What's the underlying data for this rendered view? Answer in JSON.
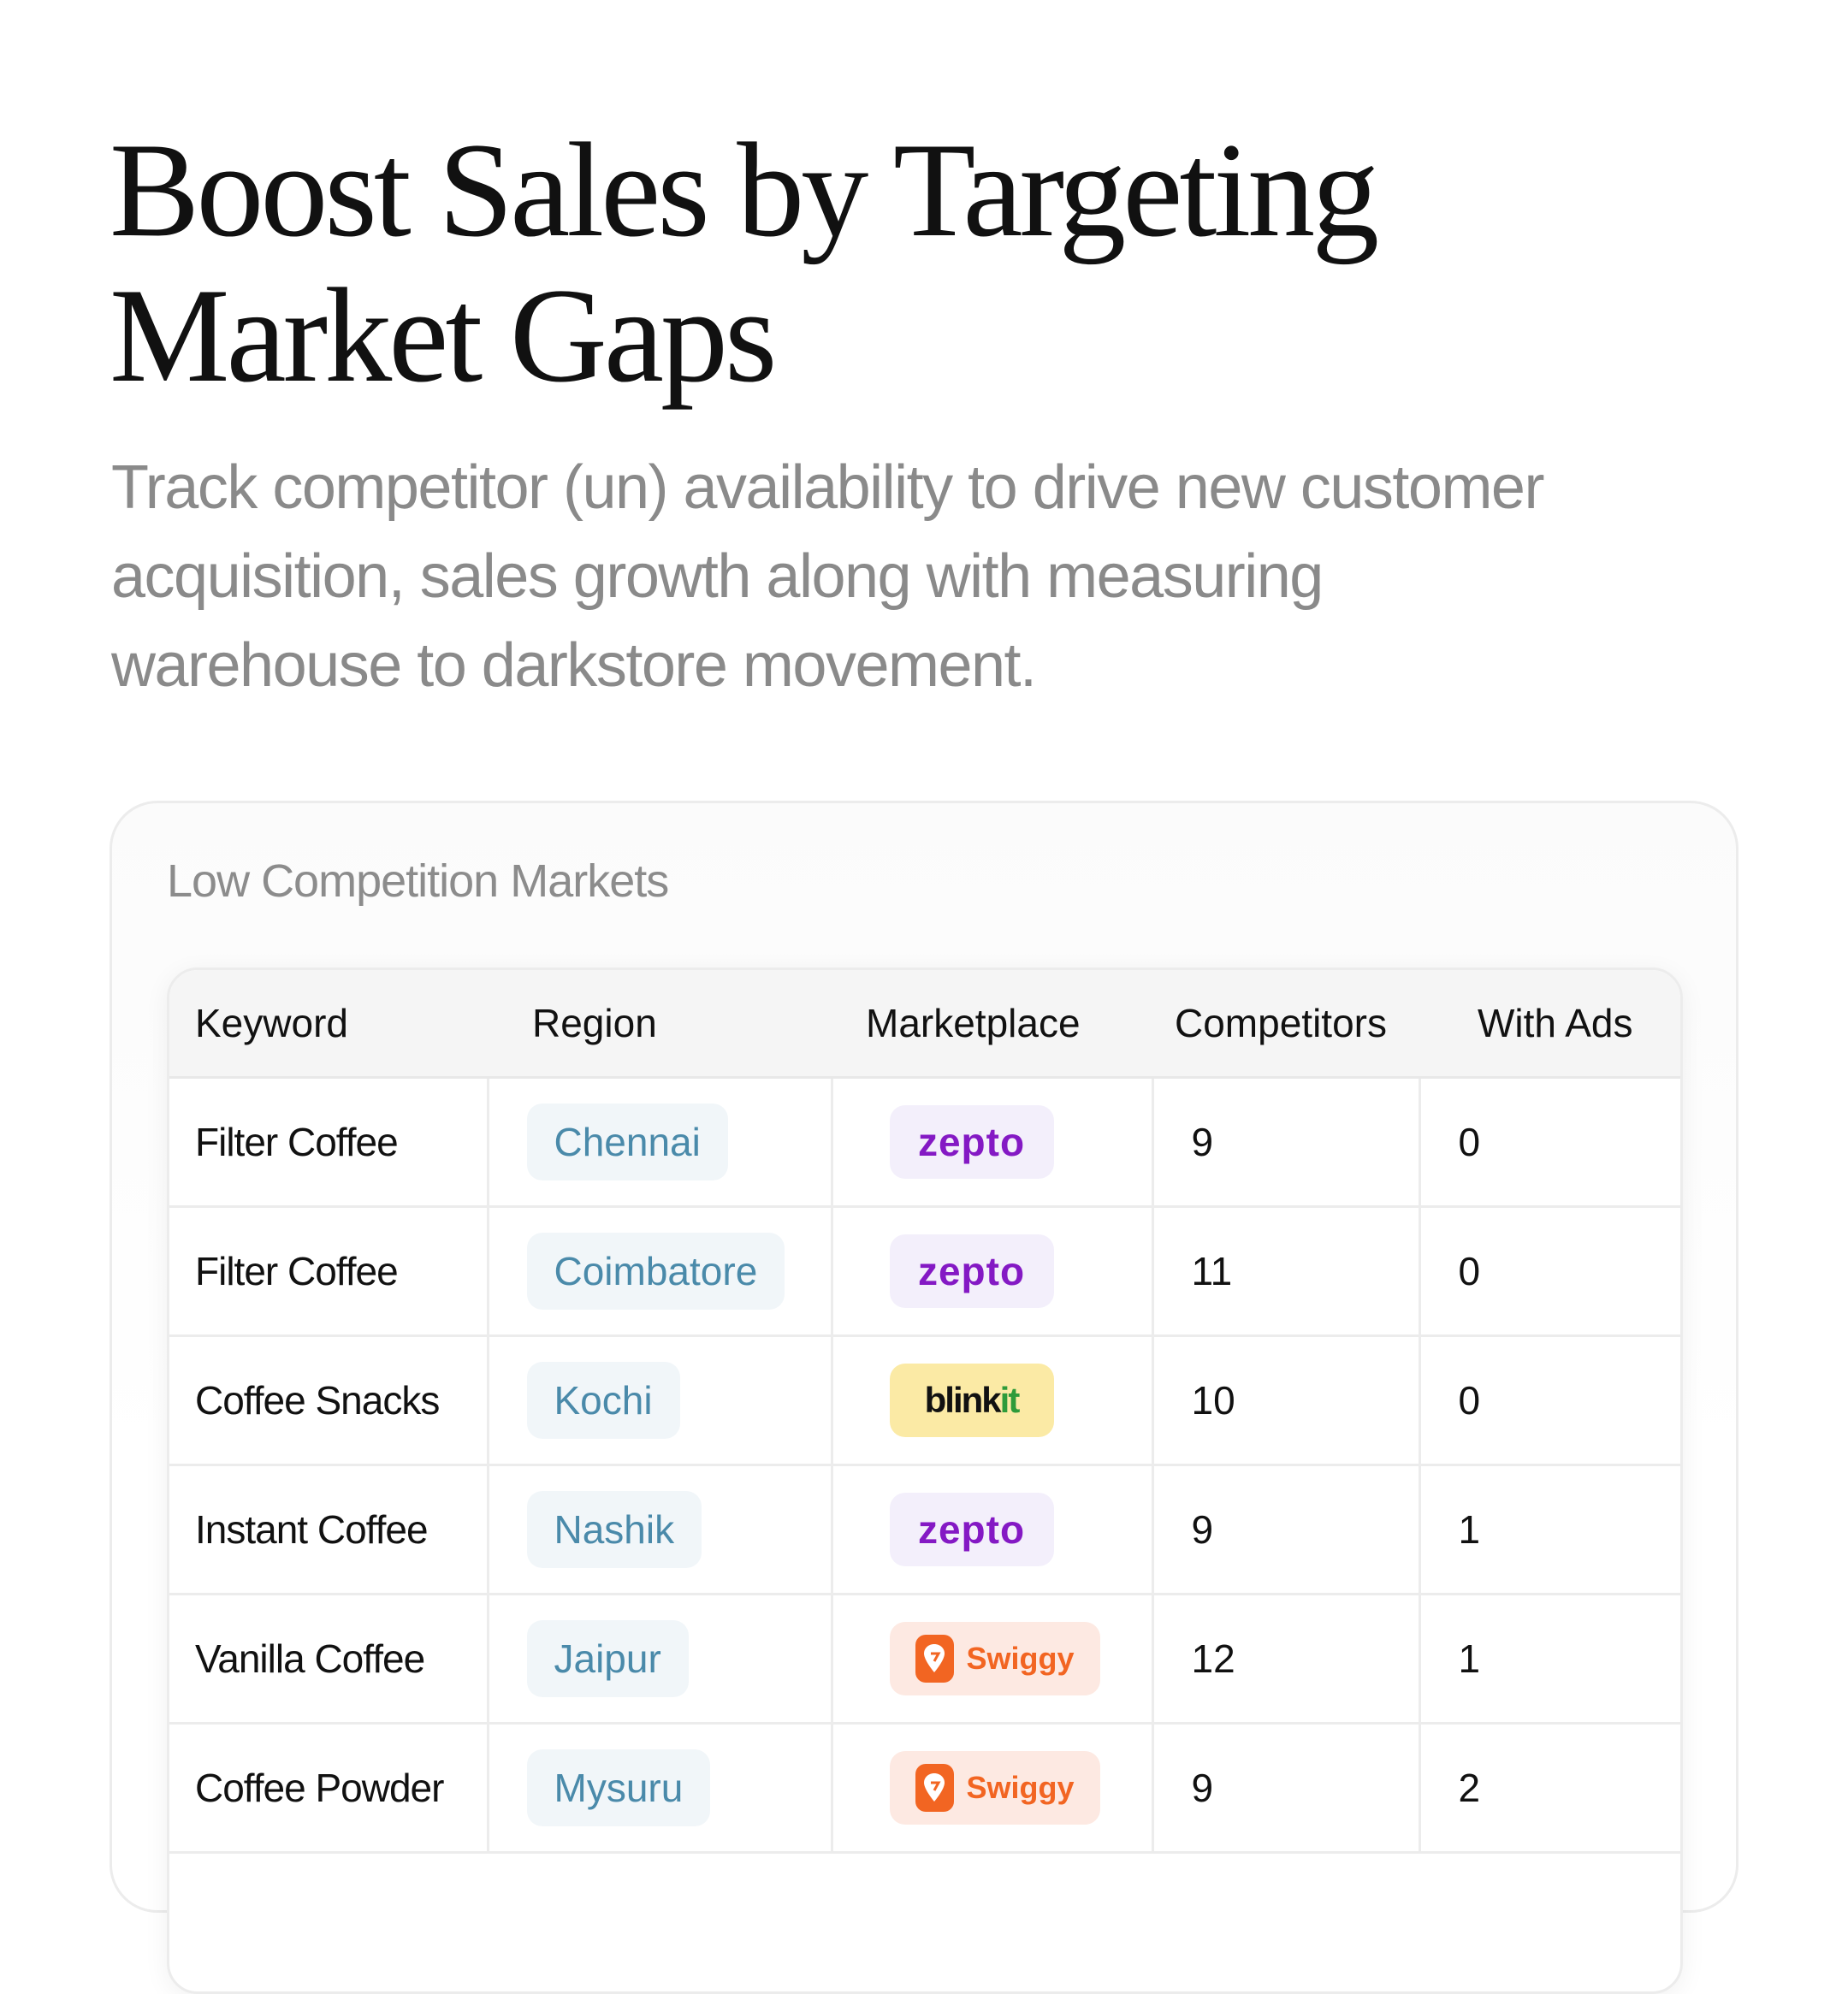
{
  "hero": {
    "title_line1": "Boost Sales by Targeting",
    "title_line2": "Market Gaps",
    "subtitle_line1": "Track competitor (un) availability to drive new customer",
    "subtitle_line2": "acquisition, sales growth along with measuring",
    "subtitle_line3": "warehouse to darkstore movement."
  },
  "card": {
    "title": "Low Competition Markets"
  },
  "table": {
    "headers": {
      "keyword": "Keyword",
      "region": "Region",
      "marketplace": "Marketplace",
      "competitors": "Competitors",
      "with_ads": "With Ads"
    },
    "rows": [
      {
        "keyword": "Filter Coffee",
        "region": "Chennai",
        "marketplace": "zepto",
        "competitors": "9",
        "with_ads": "0"
      },
      {
        "keyword": "Filter Coffee",
        "region": "Coimbatore",
        "marketplace": "zepto",
        "competitors": "11",
        "with_ads": "0"
      },
      {
        "keyword": "Coffee Snacks",
        "region": "Kochi",
        "marketplace_a": "blink",
        "marketplace_b": "it",
        "competitors": "10",
        "with_ads": "0"
      },
      {
        "keyword": "Instant Coffee",
        "region": "Nashik",
        "marketplace": "zepto",
        "competitors": "9",
        "with_ads": "1"
      },
      {
        "keyword": "Vanilla Coffee",
        "region": "Jaipur",
        "marketplace": "Swiggy",
        "competitors": "12",
        "with_ads": "1"
      },
      {
        "keyword": "Coffee Powder",
        "region": "Mysuru",
        "marketplace": "Swiggy",
        "competitors": "9",
        "with_ads": "2"
      }
    ]
  },
  "colors": {
    "zepto": "#8419c4",
    "blinkit_bg": "#fbeaa5",
    "blinkit_green": "#2e9b3a",
    "swiggy": "#f26522",
    "region_text": "#4a8aaa"
  },
  "icons": {
    "swiggy_logo": "swiggy-logo-icon"
  }
}
